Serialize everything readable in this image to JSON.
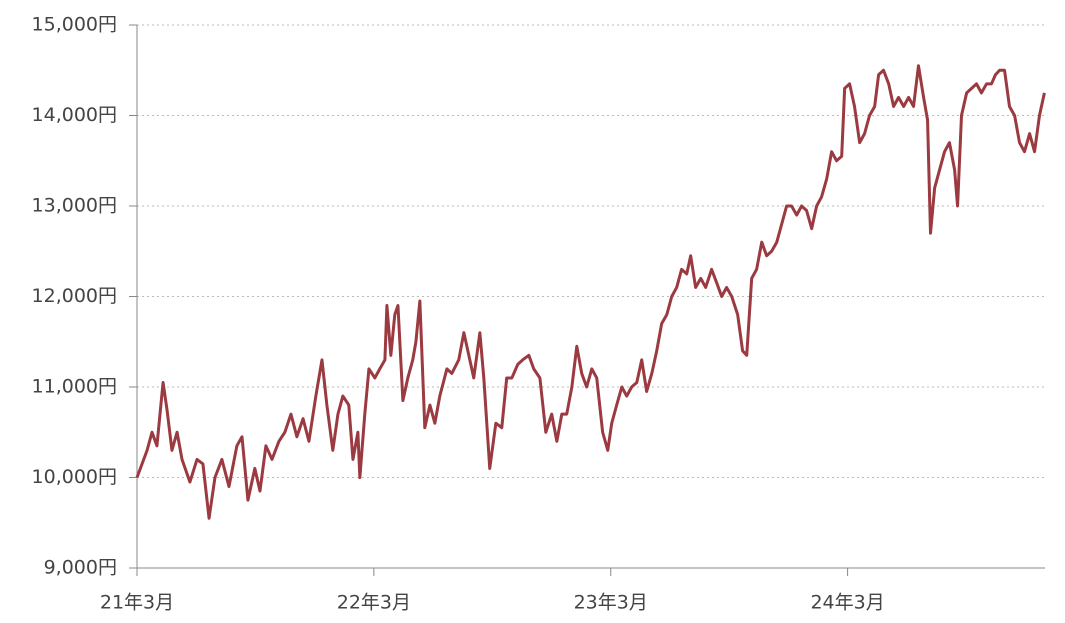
{
  "chart_data": {
    "type": "line",
    "color": "#9b3a40",
    "grid": true,
    "xlim": [
      0,
      46
    ],
    "xticks": [
      {
        "value": 0,
        "label": "21年3月"
      },
      {
        "value": 12,
        "label": "22年3月"
      },
      {
        "value": 24,
        "label": "23年3月"
      },
      {
        "value": 36,
        "label": "24年3月"
      }
    ],
    "ylim": [
      9000,
      15000
    ],
    "yticks": [
      {
        "value": 9000,
        "label": "9,000円"
      },
      {
        "value": 10000,
        "label": "10,000円"
      },
      {
        "value": 11000,
        "label": "11,000円"
      },
      {
        "value": 12000,
        "label": "12,000円"
      },
      {
        "value": 13000,
        "label": "13,000円"
      },
      {
        "value": 14000,
        "label": "14,000円"
      },
      {
        "value": 15000,
        "label": "15,000円"
      }
    ],
    "x": [
      0,
      0.51,
      0.76,
      1.01,
      1.32,
      1.52,
      1.77,
      2.03,
      2.28,
      2.68,
      3.04,
      3.34,
      3.65,
      3.95,
      4.3,
      4.66,
      5.06,
      5.32,
      5.62,
      5.97,
      6.23,
      6.53,
      6.84,
      7.19,
      7.49,
      7.8,
      8.1,
      8.41,
      8.71,
      9.06,
      9.37,
      9.62,
      9.92,
      10.18,
      10.43,
      10.73,
      10.94,
      11.19,
      11.29,
      11.54,
      11.75,
      12.05,
      12.3,
      12.56,
      12.66,
      12.86,
      13.06,
      13.22,
      13.47,
      13.72,
      13.97,
      14.13,
      14.33,
      14.58,
      14.84,
      15.09,
      15.34,
      15.7,
      15.95,
      16.3,
      16.56,
      16.86,
      17.06,
      17.37,
      17.57,
      17.87,
      18.18,
      18.48,
      18.73,
      18.99,
      19.29,
      19.54,
      19.85,
      20.1,
      20.41,
      20.71,
      21.01,
      21.27,
      21.52,
      21.77,
      22.03,
      22.28,
      22.53,
      22.78,
      23.04,
      23.29,
      23.59,
      23.85,
      24.05,
      24.3,
      24.56,
      24.81,
      25.06,
      25.32,
      25.57,
      25.82,
      26.08,
      26.33,
      26.58,
      26.84,
      27.09,
      27.34,
      27.59,
      27.85,
      28.05,
      28.3,
      28.56,
      28.81,
      29.11,
      29.37,
      29.62,
      29.87,
      30.13,
      30.43,
      30.68,
      30.89,
      31.14,
      31.39,
      31.65,
      31.9,
      32.15,
      32.41,
      32.66,
      32.91,
      33.16,
      33.42,
      33.67,
      33.92,
      34.18,
      34.43,
      34.68,
      34.94,
      35.19,
      35.44,
      35.7,
      35.85,
      36.1,
      36.35,
      36.61,
      36.86,
      37.11,
      37.37,
      37.57,
      37.82,
      38.08,
      38.33,
      38.58,
      38.84,
      39.09,
      39.34,
      39.59,
      39.85,
      40.05,
      40.2,
      40.41,
      40.66,
      40.91,
      41.16,
      41.42,
      41.57,
      41.77,
      42.03,
      42.28,
      42.53,
      42.78,
      43.04,
      43.29,
      43.49,
      43.7,
      43.95,
      44.2,
      44.46,
      44.71,
      44.96,
      45.22,
      45.47,
      45.72,
      45.97
    ],
    "values": [
      10000,
      10300,
      10500,
      10350,
      11050,
      10750,
      10300,
      10500,
      10200,
      9950,
      10200,
      10150,
      9550,
      10000,
      10200,
      9900,
      10350,
      10450,
      9750,
      10100,
      9850,
      10350,
      10200,
      10400,
      10500,
      10700,
      10450,
      10650,
      10400,
      10900,
      11300,
      10800,
      10300,
      10700,
      10900,
      10800,
      10200,
      10500,
      10000,
      10700,
      11200,
      11100,
      11200,
      11300,
      11900,
      11350,
      11800,
      11900,
      10850,
      11100,
      11300,
      11500,
      11950,
      10550,
      10800,
      10600,
      10900,
      11200,
      11150,
      11300,
      11600,
      11300,
      11100,
      11600,
      11100,
      10100,
      10600,
      10550,
      11100,
      11100,
      11250,
      11300,
      11350,
      11200,
      11100,
      10500,
      10700,
      10400,
      10700,
      10700,
      11000,
      11450,
      11150,
      11000,
      11200,
      11100,
      10500,
      10300,
      10600,
      10800,
      11000,
      10900,
      11000,
      11050,
      11300,
      10950,
      11150,
      11400,
      11700,
      11800,
      12000,
      12100,
      12300,
      12250,
      12450,
      12100,
      12200,
      12100,
      12300,
      12150,
      12000,
      12100,
      12000,
      11800,
      11400,
      11350,
      12200,
      12300,
      12600,
      12450,
      12500,
      12600,
      12800,
      13000,
      13000,
      12900,
      13000,
      12950,
      12750,
      13000,
      13100,
      13300,
      13600,
      13500,
      13550,
      14300,
      14350,
      14100,
      13700,
      13800,
      14000,
      14100,
      14450,
      14500,
      14350,
      14100,
      14200,
      14100,
      14200,
      14100,
      14550,
      14200,
      13950,
      12700,
      13200,
      13400,
      13600,
      13700,
      13400,
      13000,
      14000,
      14250,
      14300,
      14350,
      14250,
      14350,
      14350,
      14450,
      14500,
      14500,
      14100,
      14000,
      13700,
      13600,
      13800,
      13600,
      14000,
      14250
    ]
  }
}
